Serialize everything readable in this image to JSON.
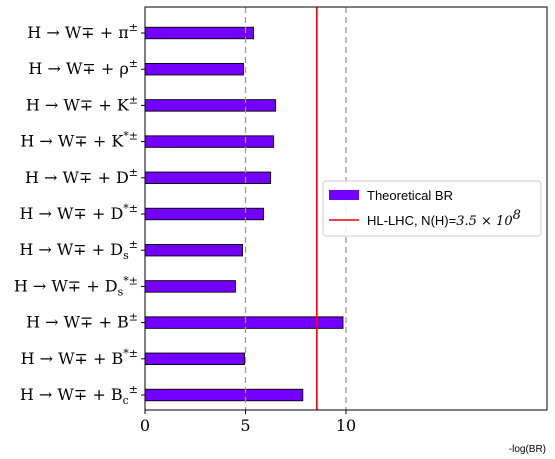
{
  "chart_data": {
    "type": "bar",
    "orientation": "horizontal",
    "categories": [
      {
        "main": "H → W∓ + π",
        "sup": "±",
        "sub": ""
      },
      {
        "main": "H → W∓ + ρ",
        "sup": "±",
        "sub": ""
      },
      {
        "main": "H → W∓ + K",
        "sup": "±",
        "sub": ""
      },
      {
        "main": "H → W∓ + K",
        "sup": "*±",
        "sub": ""
      },
      {
        "main": "H → W∓ + D",
        "sup": "±",
        "sub": ""
      },
      {
        "main": "H → W∓ + D",
        "sup": "*±",
        "sub": ""
      },
      {
        "main": "H → W∓ + D",
        "sup": "±",
        "sub": "s"
      },
      {
        "main": "H → W∓ + D",
        "sup": "*±",
        "sub": "s"
      },
      {
        "main": "H → W∓ + B",
        "sup": "±",
        "sub": ""
      },
      {
        "main": "H → W∓ + B",
        "sup": "*±",
        "sub": ""
      },
      {
        "main": "H → W∓ + B",
        "sup": "±",
        "sub": "c"
      }
    ],
    "values": [
      5.4,
      4.9,
      6.5,
      6.4,
      6.25,
      5.9,
      4.85,
      4.5,
      9.85,
      4.95,
      7.85
    ],
    "series_name": "Theoretical BR",
    "bar_color": "#7300ff",
    "bar_edge_color": "#000000",
    "reference_line": {
      "x": 8.55,
      "color": "#e8000b",
      "label_text": "HL-LHC, N(H)=",
      "label_math_base": "3.5 × 10",
      "label_math_exp": "8"
    },
    "dashed_lines": [
      5,
      10
    ],
    "dashed_color": "#999999",
    "xlim": [
      0,
      20
    ],
    "xticks": [
      "0",
      "5",
      "10"
    ],
    "xticks_values": [
      0,
      5,
      10
    ],
    "xlabel": "-log(BR)",
    "legend_placement": "center-right"
  }
}
